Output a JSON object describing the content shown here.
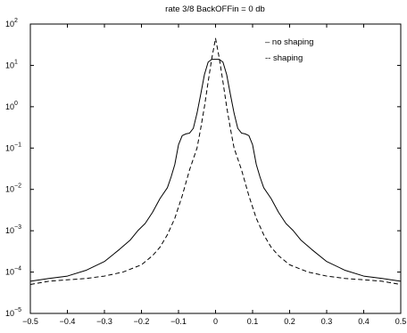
{
  "chart_data": {
    "type": "line",
    "title": "rate 3/8  BackOFFin = 0 db",
    "xlabel": "",
    "ylabel": "",
    "yscale": "log",
    "xlim": [
      -0.5,
      0.5
    ],
    "ylim": [
      1e-05,
      100
    ],
    "grid": false,
    "legend_position": "top-right",
    "x_ticks": [
      {
        "value": -0.5,
        "label": "−0.5"
      },
      {
        "value": -0.4,
        "label": "−0.4"
      },
      {
        "value": -0.3,
        "label": "−0.3"
      },
      {
        "value": -0.2,
        "label": "−0.2"
      },
      {
        "value": -0.1,
        "label": "−0.1"
      },
      {
        "value": 0,
        "label": "0"
      },
      {
        "value": 0.1,
        "label": "0.1"
      },
      {
        "value": 0.2,
        "label": "0.2"
      },
      {
        "value": 0.3,
        "label": "0.3"
      },
      {
        "value": 0.4,
        "label": "0.4"
      },
      {
        "value": 0.5,
        "label": "0.5"
      }
    ],
    "y_ticks": [
      {
        "exp": -5,
        "base": "10",
        "sup": "−5"
      },
      {
        "exp": -4,
        "base": "10",
        "sup": "−4"
      },
      {
        "exp": -3,
        "base": "10",
        "sup": "−3"
      },
      {
        "exp": -2,
        "base": "10",
        "sup": "−2"
      },
      {
        "exp": -1,
        "base": "10",
        "sup": "−1"
      },
      {
        "exp": 0,
        "base": "10",
        "sup": "0"
      },
      {
        "exp": 1,
        "base": "10",
        "sup": "1"
      },
      {
        "exp": 2,
        "base": "10",
        "sup": "2"
      }
    ],
    "series": [
      {
        "name": "no shaping",
        "legend_label": "– no shaping",
        "style": "solid",
        "color": "#000000",
        "x": [
          -0.5,
          -0.45,
          -0.4,
          -0.35,
          -0.3,
          -0.26,
          -0.23,
          -0.21,
          -0.19,
          -0.17,
          -0.15,
          -0.13,
          -0.12,
          -0.11,
          -0.1,
          -0.09,
          -0.08,
          -0.07,
          -0.06,
          -0.05,
          -0.04,
          -0.03,
          -0.02,
          -0.01,
          0,
          0.01,
          0.02,
          0.03,
          0.04,
          0.05,
          0.06,
          0.07,
          0.08,
          0.09,
          0.1,
          0.11,
          0.12,
          0.13,
          0.15,
          0.17,
          0.19,
          0.21,
          0.23,
          0.26,
          0.3,
          0.35,
          0.4,
          0.45,
          0.5
        ],
        "y": [
          6e-05,
          7e-05,
          8e-05,
          0.00011,
          0.00018,
          0.00035,
          0.0006,
          0.001,
          0.0015,
          0.0028,
          0.006,
          0.011,
          0.02,
          0.04,
          0.12,
          0.2,
          0.22,
          0.23,
          0.3,
          0.7,
          2,
          6,
          12,
          14,
          14,
          14,
          12,
          6,
          2,
          0.7,
          0.3,
          0.23,
          0.22,
          0.2,
          0.12,
          0.04,
          0.02,
          0.011,
          0.006,
          0.0028,
          0.0015,
          0.001,
          0.0006,
          0.00035,
          0.00018,
          0.00011,
          8e-05,
          7e-05,
          6e-05
        ]
      },
      {
        "name": "shaping",
        "legend_label": "-- shaping",
        "style": "dashed",
        "color": "#000000",
        "x": [
          -0.5,
          -0.45,
          -0.4,
          -0.35,
          -0.3,
          -0.25,
          -0.2,
          -0.17,
          -0.15,
          -0.13,
          -0.11,
          -0.09,
          -0.07,
          -0.05,
          -0.04,
          -0.03,
          -0.02,
          -0.01,
          0,
          0.01,
          0.02,
          0.03,
          0.04,
          0.05,
          0.07,
          0.09,
          0.11,
          0.13,
          0.15,
          0.17,
          0.2,
          0.25,
          0.3,
          0.35,
          0.4,
          0.45,
          0.5
        ],
        "y": [
          5e-05,
          6e-05,
          6.5e-05,
          7e-05,
          8e-05,
          0.0001,
          0.00015,
          0.00025,
          0.0004,
          0.0008,
          0.002,
          0.007,
          0.03,
          0.1,
          0.3,
          1,
          4,
          15,
          45,
          15,
          4,
          1,
          0.3,
          0.1,
          0.03,
          0.007,
          0.002,
          0.0008,
          0.0004,
          0.00025,
          0.00015,
          0.0001,
          8e-05,
          7e-05,
          6.5e-05,
          6e-05,
          5e-05
        ]
      }
    ]
  }
}
